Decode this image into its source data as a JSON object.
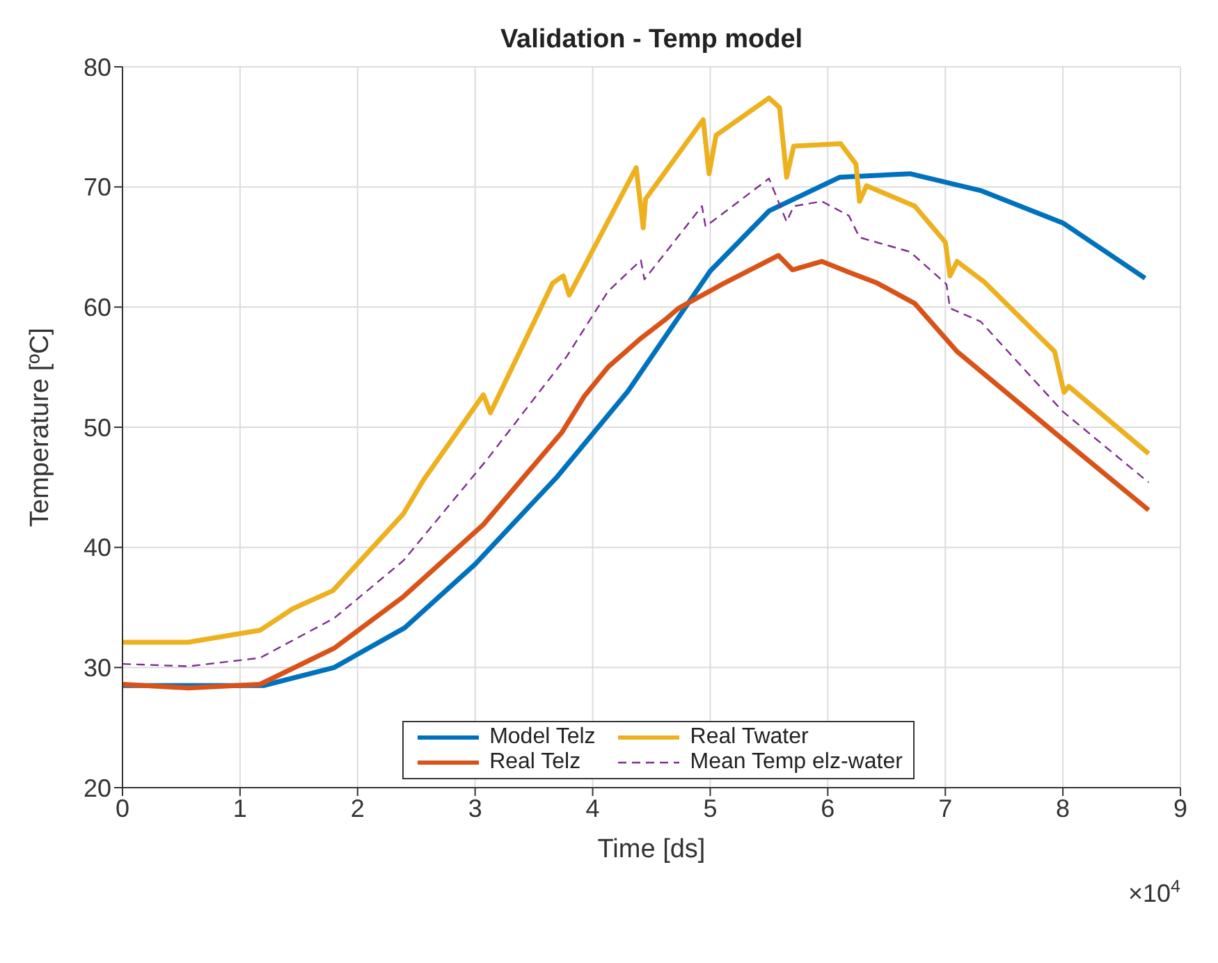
{
  "chart_data": {
    "type": "line",
    "title": "Validation - Temp model",
    "xlabel": "Time [ds]",
    "ylabel": "Temperature [ºC]",
    "xlim": [
      0,
      9
    ],
    "xticks": [
      0,
      1,
      2,
      3,
      4,
      5,
      6,
      7,
      8,
      9
    ],
    "ylim": [
      20,
      80
    ],
    "yticks": [
      20,
      30,
      40,
      50,
      60,
      70,
      80
    ],
    "grid": true,
    "legend": "bottom",
    "line_style": "solid",
    "marker": "none",
    "annotations": [
      "×10$^{4}$"
    ],
    "series": [
      {
        "name": "Model Telz",
        "color": "#0072bd",
        "x": [
          0,
          1.2,
          1.8,
          2.4,
          3.0,
          3.7,
          4.3,
          5.0,
          5.5,
          6.1,
          6.7,
          7.3,
          8.0,
          8.7
        ],
        "values": [
          28.5,
          28.5,
          30.0,
          33.3,
          38.6,
          45.9,
          53,
          63,
          68,
          70.8,
          71.1,
          69.7,
          67,
          62.4
        ]
      },
      {
        "name": "Real Telz",
        "color": "#d95319",
        "x": [
          0,
          0.56,
          1.17,
          1.8,
          2.39,
          3.07,
          3.74,
          3.93,
          4.13,
          4.41,
          4.61,
          4.73,
          5.12,
          5.58,
          5.7,
          5.95,
          6.18,
          6.42,
          6.74,
          7.1,
          8.01,
          8.73
        ],
        "values": [
          28.6,
          28.3,
          28.6,
          31.6,
          35.9,
          41.9,
          49.6,
          52.6,
          55,
          57.4,
          58.9,
          59.9,
          62,
          64.3,
          63.1,
          63.8,
          62.9,
          62,
          60.3,
          56.3,
          48.9,
          43.1
        ]
      },
      {
        "name": "Real Twater",
        "color": "#edb120",
        "x": [
          0,
          0.56,
          1.17,
          1.45,
          1.79,
          2.39,
          2.56,
          3.07,
          3.13,
          3.66,
          3.75,
          3.8,
          4.37,
          4.43,
          4.45,
          4.94,
          4.99,
          5.05,
          5.5,
          5.59,
          5.65,
          5.71,
          6.11,
          6.24,
          6.27,
          6.33,
          6.74,
          7.0,
          7.04,
          7.1,
          7.33,
          7.93,
          8.01,
          8.05,
          8.73
        ],
        "values": [
          32.1,
          32.1,
          33.1,
          34.9,
          36.4,
          42.8,
          45.6,
          52.7,
          51.2,
          62,
          62.6,
          61,
          71.6,
          66.6,
          69,
          75.6,
          71.1,
          74.3,
          77.4,
          76.6,
          70.8,
          73.4,
          73.6,
          71.9,
          68.8,
          70.1,
          68.4,
          65.4,
          62.6,
          63.8,
          62.1,
          56.3,
          52.9,
          53.4,
          47.8
        ]
      },
      {
        "name": "Mean Temp elz-water",
        "color": "#7e2f8e",
        "line_style": "dashed",
        "x": [
          0,
          0.56,
          1.17,
          1.8,
          2.39,
          3.1,
          3.78,
          4.13,
          4.41,
          4.44,
          4.93,
          4.96,
          5.5,
          5.65,
          5.71,
          5.95,
          6.18,
          6.27,
          6.7,
          7.01,
          7.04,
          7.3,
          8.0,
          8.73
        ],
        "values": [
          30.3,
          30.1,
          30.8,
          34.1,
          38.9,
          47.3,
          55.9,
          61.3,
          63.9,
          62.3,
          68.4,
          66.7,
          70.7,
          67.1,
          68.4,
          68.8,
          67.6,
          65.8,
          64.6,
          61.9,
          59.9,
          58.8,
          51.3,
          45.4
        ]
      }
    ]
  }
}
